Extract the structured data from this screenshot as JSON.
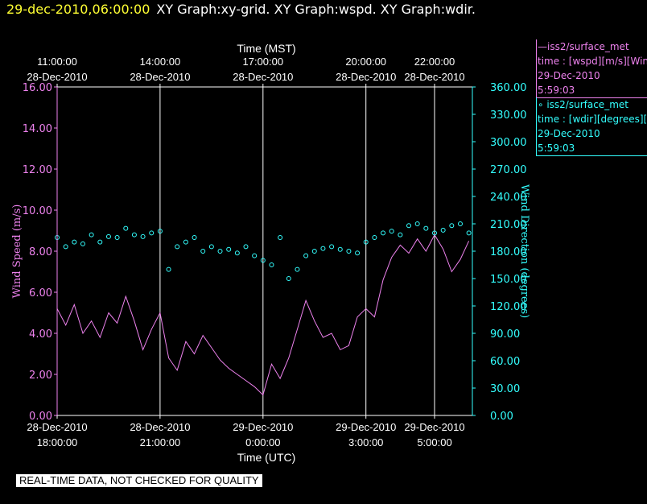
{
  "header": {
    "timestamp": "29-dec-2010,06:00:00",
    "graph_names": "XY Graph:xy-grid.  XY Graph:wspd.  XY Graph:wdir."
  },
  "legend": {
    "wspd": {
      "line1": "—iss2/surface_met",
      "line2": "time : [wspd][m/s][Wind",
      "line3": "29-Dec-2010",
      "line4": "5:59:03",
      "color": "#ee82ee"
    },
    "wdir": {
      "line1": "∘ iss2/surface_met",
      "line2": "time : [wdir][degrees][V",
      "line3": "29-Dec-2010",
      "line4": "5:59:03",
      "color": "#33ffff"
    }
  },
  "footer": "REAL-TIME DATA, NOT CHECKED FOR QUALITY",
  "chart_data": {
    "type": "line",
    "x_axis_bottom": {
      "label": "Time (UTC)",
      "ticks": [
        {
          "date": "28-Dec-2010",
          "time": "18:00:00",
          "hour": 0
        },
        {
          "date": "28-Dec-2010",
          "time": "21:00:00",
          "hour": 3
        },
        {
          "date": "29-Dec-2010",
          "time": "0:00:00",
          "hour": 6
        },
        {
          "date": "29-Dec-2010",
          "time": "3:00:00",
          "hour": 9
        },
        {
          "date": "29-Dec-2010",
          "time": "5:00:00",
          "hour": 11
        }
      ],
      "range_hours": [
        0,
        12.2
      ]
    },
    "x_axis_top": {
      "label": "Time (MST)",
      "ticks": [
        {
          "time": "11:00:00",
          "date": "28-Dec-2010",
          "hour": 0
        },
        {
          "time": "14:00:00",
          "date": "28-Dec-2010",
          "hour": 3
        },
        {
          "time": "17:00:00",
          "date": "28-Dec-2010",
          "hour": 6
        },
        {
          "time": "20:00:00",
          "date": "28-Dec-2010",
          "hour": 9
        },
        {
          "time": "22:00:00",
          "date": "28-Dec-2010",
          "hour": 11
        }
      ]
    },
    "y_left": {
      "label": "Wind Speed (m/s)",
      "range": [
        0,
        16
      ],
      "ticks": [
        "0.00",
        "2.00",
        "4.00",
        "6.00",
        "8.00",
        "10.00",
        "12.00",
        "14.00",
        "16.00"
      ],
      "color": "#ee82ee"
    },
    "y_right": {
      "label": "Wind Direction (degrees)",
      "range": [
        0,
        360
      ],
      "ticks": [
        "0.00",
        "30.00",
        "60.00",
        "90.00",
        "120.00",
        "150.00",
        "180.00",
        "210.00",
        "240.00",
        "270.00",
        "300.00",
        "330.00",
        "360.00"
      ],
      "color": "#33ffff"
    },
    "grid_vertical_hours": [
      3,
      6,
      9,
      11
    ],
    "series": [
      {
        "name": "wspd",
        "style": "line",
        "color": "#ee82ee",
        "x_hours": [
          0.0,
          0.25,
          0.5,
          0.75,
          1.0,
          1.25,
          1.5,
          1.75,
          2.0,
          2.25,
          2.5,
          2.75,
          3.0,
          3.25,
          3.5,
          3.75,
          4.0,
          4.25,
          4.5,
          4.75,
          5.0,
          5.25,
          5.5,
          5.75,
          6.0,
          6.25,
          6.5,
          6.75,
          7.0,
          7.25,
          7.5,
          7.75,
          8.0,
          8.25,
          8.5,
          8.75,
          9.0,
          9.25,
          9.5,
          9.75,
          10.0,
          10.25,
          10.5,
          10.75,
          11.0,
          11.25,
          11.5,
          11.75,
          12.0
        ],
        "values": [
          5.2,
          4.4,
          5.4,
          4.0,
          4.6,
          3.8,
          5.0,
          4.5,
          5.8,
          4.6,
          3.2,
          4.2,
          5.0,
          2.8,
          2.2,
          3.6,
          3.0,
          3.9,
          3.3,
          2.7,
          2.3,
          2.0,
          1.7,
          1.4,
          1.0,
          2.5,
          1.8,
          2.8,
          4.2,
          5.6,
          4.6,
          3.8,
          4.0,
          3.2,
          3.4,
          4.8,
          5.2,
          4.8,
          6.6,
          7.7,
          8.3,
          7.9,
          8.6,
          8.0,
          8.8,
          8.1,
          7.0,
          7.6,
          8.5
        ]
      },
      {
        "name": "wdir",
        "style": "markers",
        "color": "#33ffff",
        "x_hours": [
          0.0,
          0.25,
          0.5,
          0.75,
          1.0,
          1.25,
          1.5,
          1.75,
          2.0,
          2.25,
          2.5,
          2.75,
          3.0,
          3.25,
          3.5,
          3.75,
          4.0,
          4.25,
          4.5,
          4.75,
          5.0,
          5.25,
          5.5,
          5.75,
          6.0,
          6.25,
          6.5,
          6.75,
          7.0,
          7.25,
          7.5,
          7.75,
          8.0,
          8.25,
          8.5,
          8.75,
          9.0,
          9.25,
          9.5,
          9.75,
          10.0,
          10.25,
          10.5,
          10.75,
          11.0,
          11.25,
          11.5,
          11.75,
          12.0
        ],
        "values": [
          195,
          185,
          190,
          188,
          198,
          190,
          196,
          195,
          205,
          198,
          196,
          200,
          202,
          160,
          185,
          190,
          195,
          180,
          185,
          180,
          182,
          178,
          185,
          175,
          170,
          165,
          195,
          150,
          160,
          175,
          180,
          183,
          185,
          182,
          180,
          178,
          190,
          195,
          200,
          202,
          198,
          208,
          210,
          205,
          200,
          203,
          208,
          210,
          200
        ]
      }
    ]
  }
}
